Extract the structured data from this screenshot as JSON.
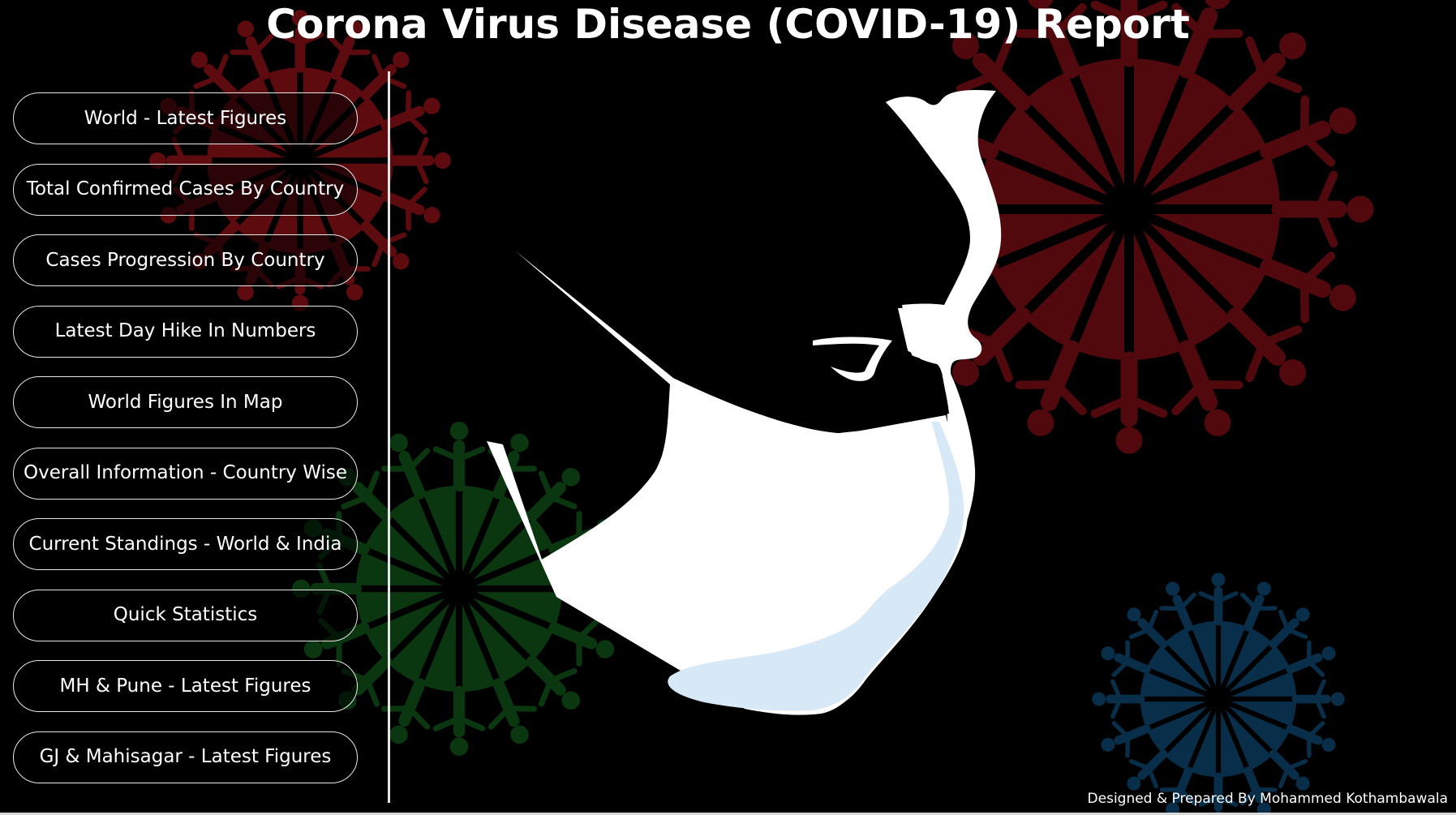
{
  "header": {
    "title": "Corona Virus Disease (COVID-19) Report"
  },
  "nav": {
    "buttons": [
      {
        "label": "World - Latest Figures"
      },
      {
        "label": "Total Confirmed Cases By Country"
      },
      {
        "label": "Cases Progression By Country"
      },
      {
        "label": "Latest Day Hike In Numbers"
      },
      {
        "label": "World Figures In Map"
      },
      {
        "label": "Overall Information - Country Wise"
      },
      {
        "label": "Current Standings - World & India"
      },
      {
        "label": "Quick Statistics"
      },
      {
        "label": "MH & Pune - Latest Figures"
      },
      {
        "label": "GJ & Mahisagar - Latest Figures"
      }
    ]
  },
  "footer": {
    "credit": "Designed & Prepared By Mohammed Kothambawala"
  },
  "art": {
    "virus_colors": {
      "red": "#6e0d12",
      "green": "#0c3d12",
      "blue": "#0b3452"
    },
    "mask_color": "#ffffff",
    "mask_shade": "#d7e8f6"
  }
}
